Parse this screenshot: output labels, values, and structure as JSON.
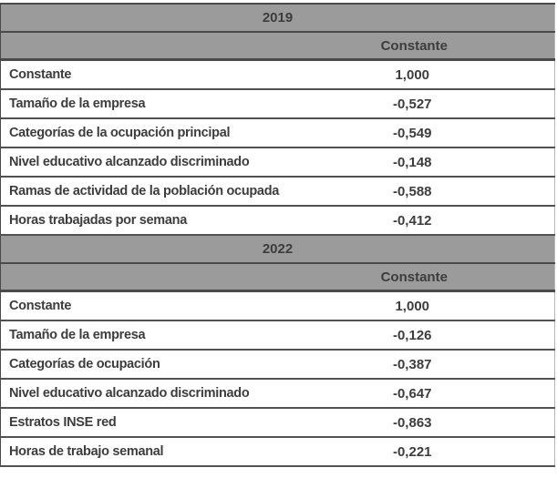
{
  "chart_data": [
    {
      "type": "table",
      "title": "2019",
      "value_column": "Constante",
      "rows": [
        {
          "label": "Constante",
          "value": "1,000"
        },
        {
          "label": "Tamaño de la empresa",
          "value": "-0,527"
        },
        {
          "label": "Categorías de la ocupación principal",
          "value": "-0,549"
        },
        {
          "label": "Nivel educativo alcanzado discriminado",
          "value": "-0,148"
        },
        {
          "label": "Ramas de actividad de la población ocupada",
          "value": "-0,588"
        },
        {
          "label": "Horas trabajadas por semana",
          "value": "-0,412"
        }
      ]
    },
    {
      "type": "table",
      "title": "2022",
      "value_column": "Constante",
      "rows": [
        {
          "label": "Constante",
          "value": "1,000"
        },
        {
          "label": "Tamaño de la empresa",
          "value": "-0,126"
        },
        {
          "label": "Categorías de ocupación",
          "value": "-0,387"
        },
        {
          "label": "Nivel educativo alcanzado discriminado",
          "value": "-0,647"
        },
        {
          "label": "Estratos INSE red",
          "value": "-0,863"
        },
        {
          "label": "Horas de trabajo semanal",
          "value": "-0,221"
        }
      ]
    }
  ],
  "colors": {
    "header_bg": "#9b9b9b",
    "border_dark": "#4a4a4a",
    "text": "#3d3d3d"
  }
}
